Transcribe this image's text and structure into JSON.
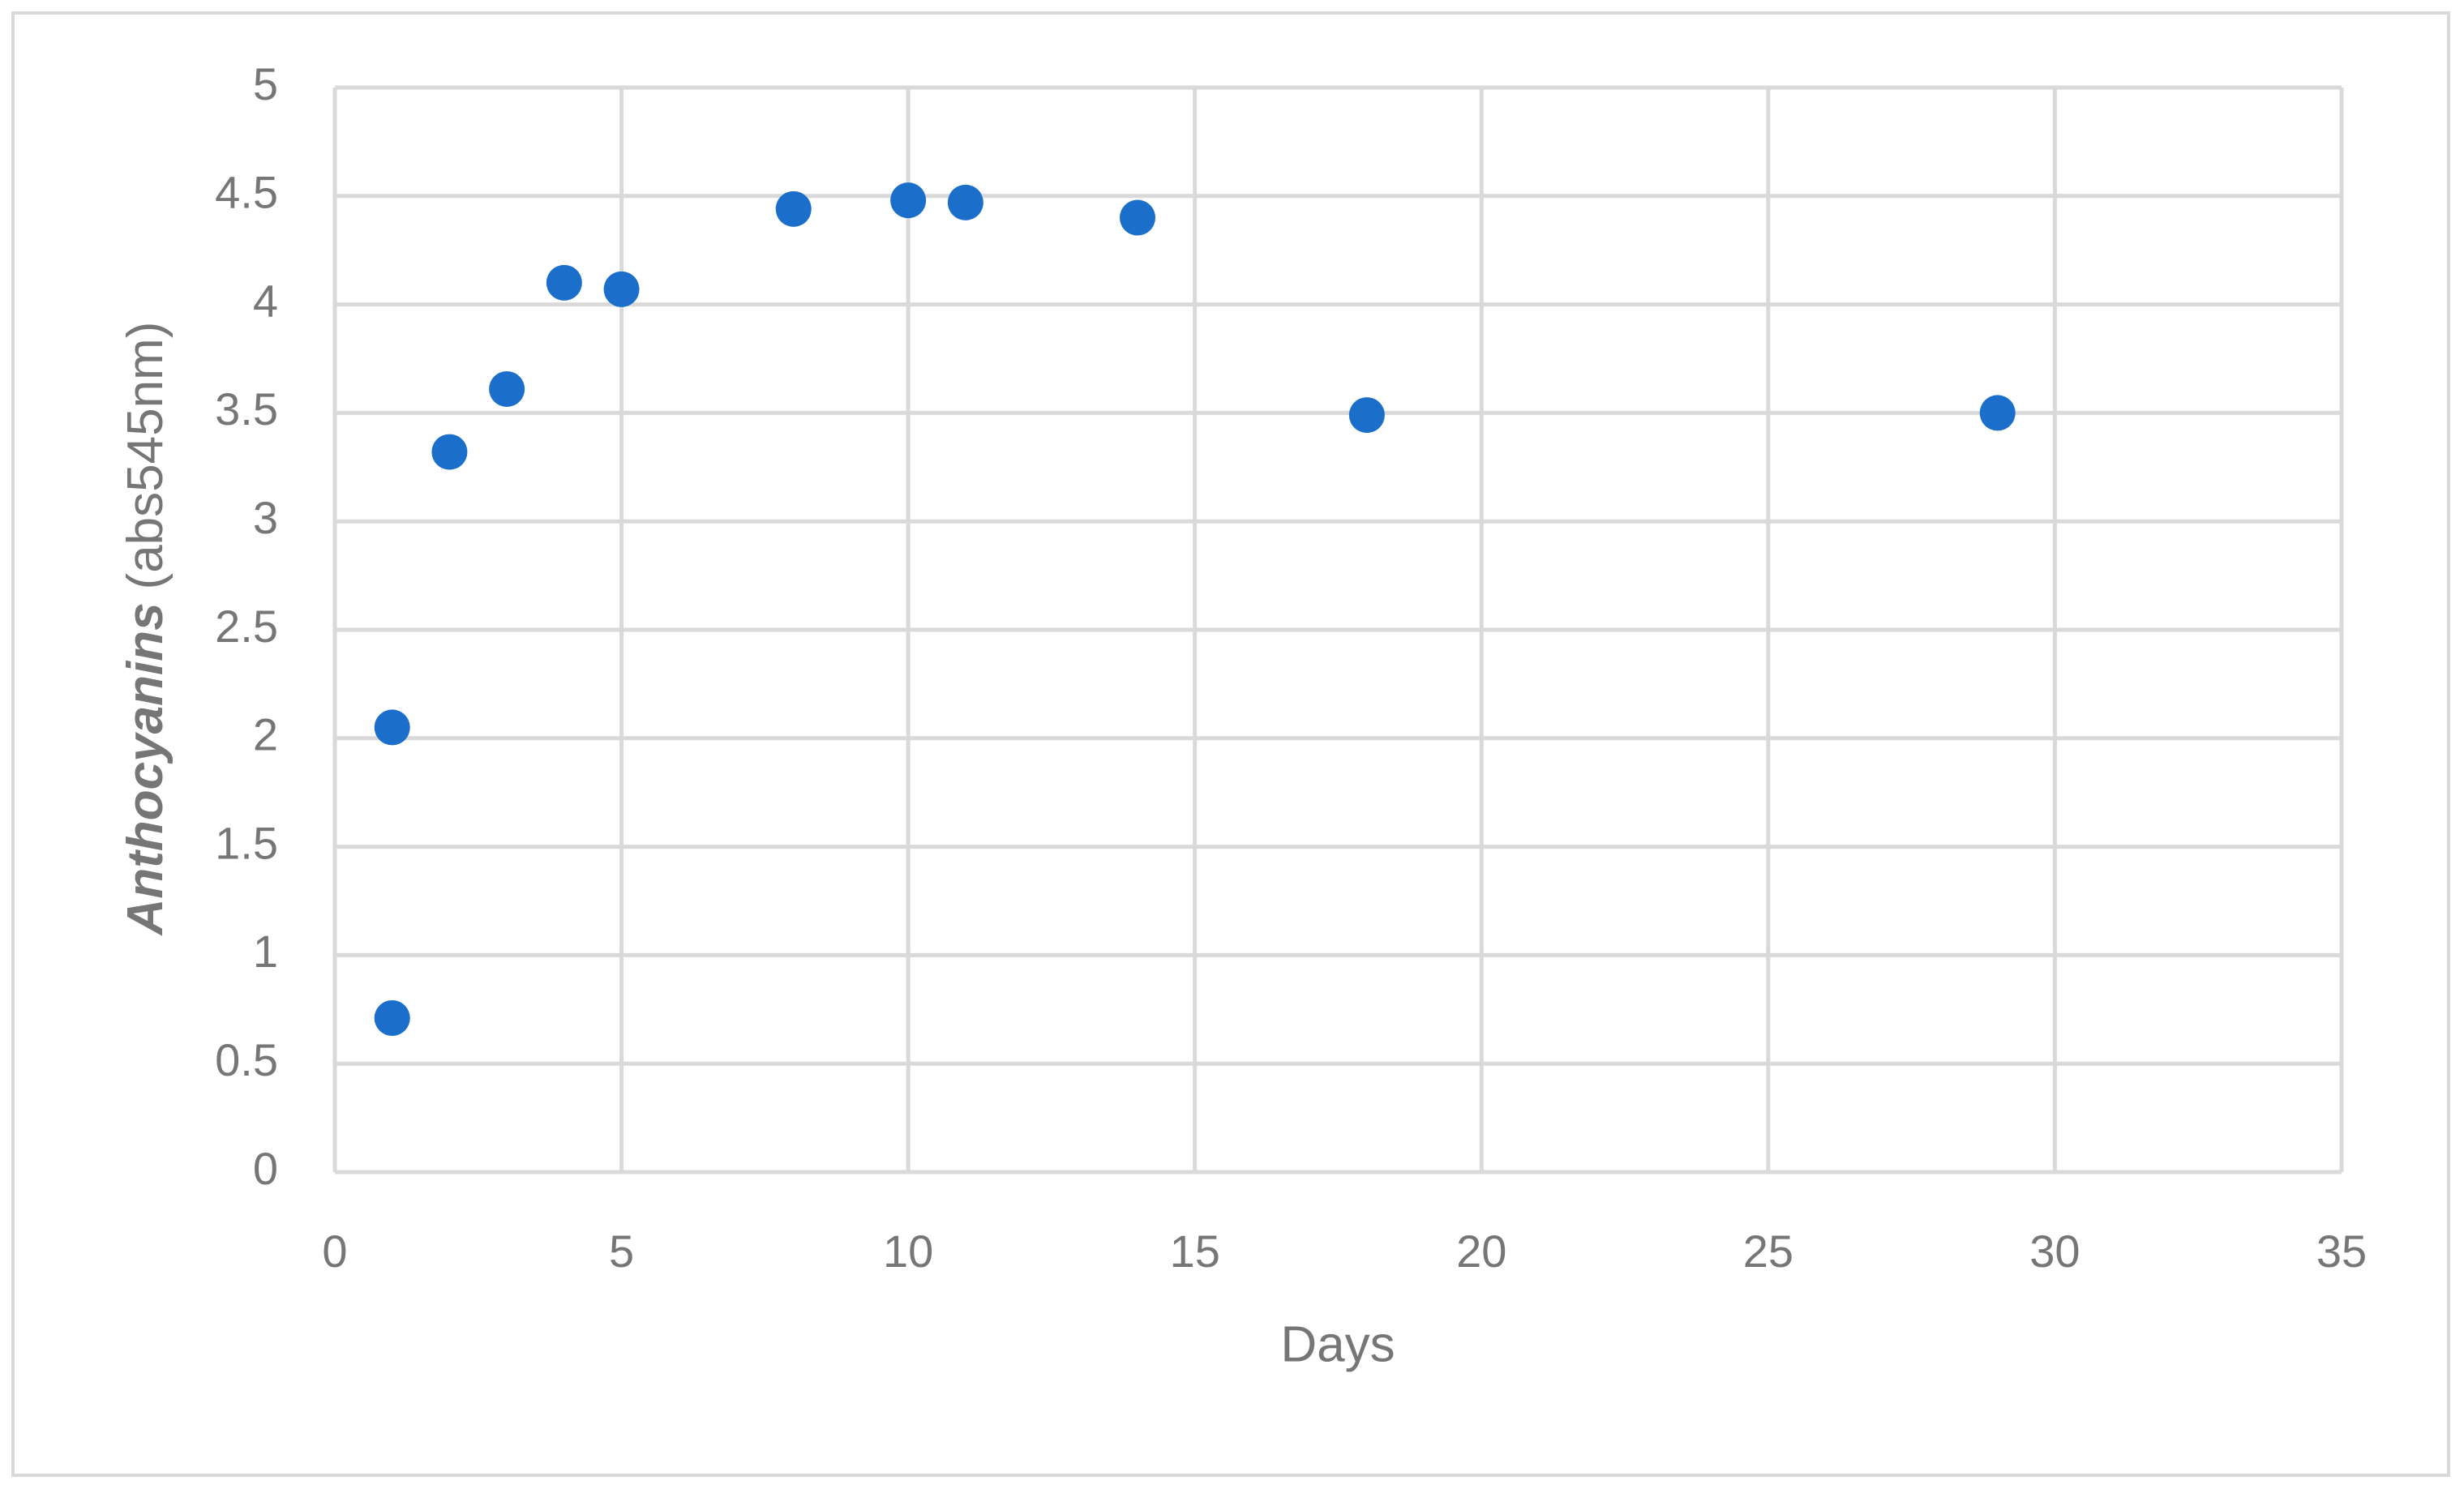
{
  "chart_data": {
    "type": "scatter",
    "x_label": "Days",
    "y_label": {
      "italic": "Anthocyanins",
      "rest": "(abs545nm)"
    },
    "series": [
      {
        "color": "#1b6fca",
        "x": [
          1,
          1,
          2,
          3,
          4,
          5,
          8,
          10,
          11,
          14,
          18,
          29
        ],
        "values": [
          0.71,
          2.05,
          3.32,
          3.61,
          4.1,
          4.07,
          4.44,
          4.48,
          4.47,
          4.4,
          3.49,
          3.5
        ]
      }
    ],
    "xlim": [
      0,
      35
    ],
    "xticks": [
      0,
      5,
      10,
      15,
      20,
      25,
      30,
      35
    ],
    "ylim": [
      0,
      5
    ],
    "yticks": [
      0,
      0.5,
      1,
      1.5,
      2,
      2.5,
      3,
      3.5,
      4,
      4.5,
      5
    ],
    "grid": true
  }
}
